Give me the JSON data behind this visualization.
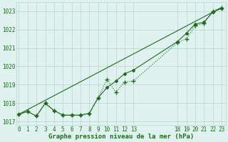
{
  "title": "Graphe pression niveau de la mer (hPa)",
  "ylim": [
    1016.8,
    1023.5
  ],
  "yticks": [
    1017,
    1018,
    1019,
    1020,
    1021,
    1022,
    1023
  ],
  "series_measured": {
    "x": [
      0,
      1,
      2,
      3,
      4,
      5,
      6,
      7,
      8,
      9,
      10,
      11,
      12,
      13,
      18,
      19,
      20,
      21,
      22,
      23
    ],
    "y": [
      1017.4,
      1017.55,
      1017.3,
      1018.0,
      1017.6,
      1017.35,
      1017.35,
      1017.35,
      1017.45,
      1018.3,
      1019.3,
      1018.6,
      1019.15,
      1019.2,
      1021.3,
      1021.5,
      1022.2,
      1022.35,
      1023.0,
      1023.2
    ],
    "color": "#1e6b1e",
    "linewidth": 0.8,
    "marker": "+",
    "markersize": 4,
    "linestyle": ":"
  },
  "series_smooth": {
    "x": [
      0,
      1,
      2,
      3,
      4,
      5,
      6,
      7,
      8,
      9,
      10,
      11,
      12,
      13,
      18,
      19,
      20,
      21,
      22,
      23
    ],
    "y": [
      1017.4,
      1017.55,
      1017.3,
      1018.0,
      1017.6,
      1017.35,
      1017.35,
      1017.35,
      1017.45,
      1018.3,
      1018.85,
      1019.2,
      1019.6,
      1019.8,
      1021.35,
      1021.8,
      1022.3,
      1022.4,
      1022.95,
      1023.15
    ],
    "color": "#1e6b1e",
    "linewidth": 0.8,
    "marker": "D",
    "markersize": 2,
    "linestyle": "-"
  },
  "series_linear": {
    "x": [
      0,
      23
    ],
    "y": [
      1017.4,
      1023.2
    ],
    "color": "#1e6b1e",
    "linewidth": 0.8,
    "marker": null,
    "markersize": 0,
    "linestyle": "-"
  },
  "background_color": "#dff2ef",
  "grid_color": "#b8d4ce",
  "text_color": "#1e6b1e",
  "title_fontsize": 6.5,
  "tick_fontsize": 5.5
}
